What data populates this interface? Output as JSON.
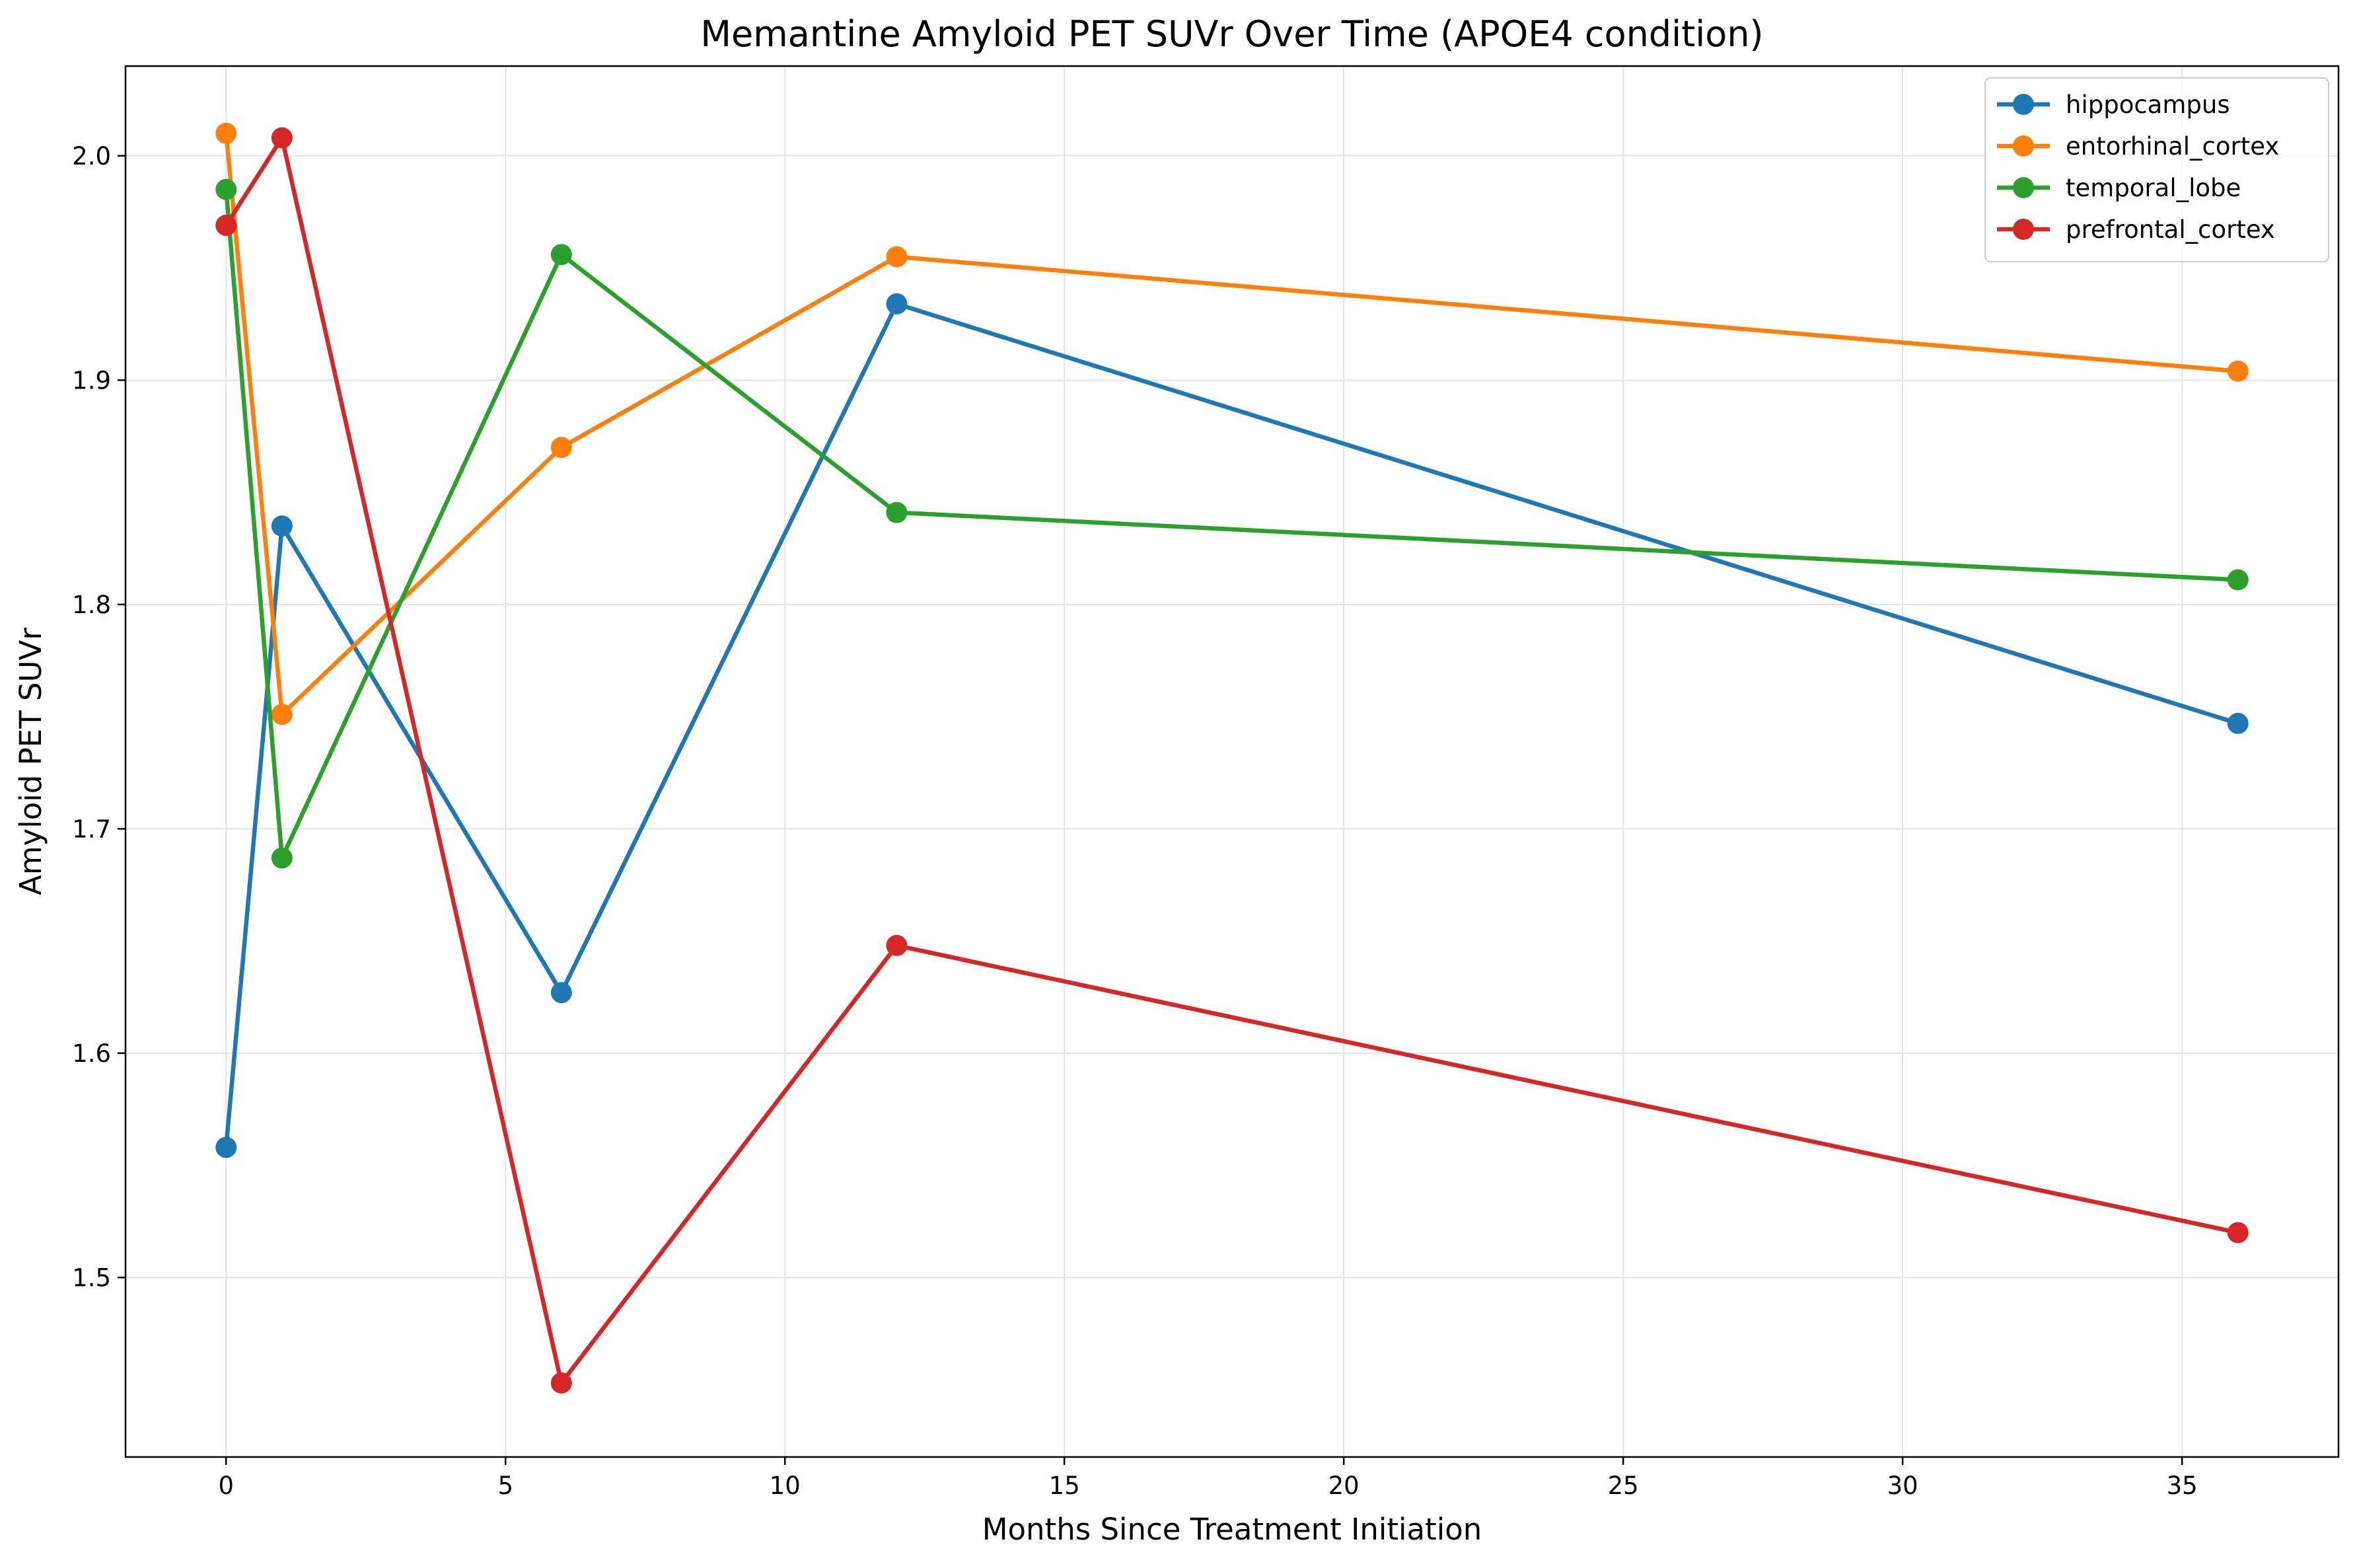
{
  "chart_data": {
    "type": "line",
    "title": "Memantine Amyloid PET SUVr Over Time (APOE4 condition)",
    "xlabel": "Months Since Treatment Initiation",
    "ylabel": "Amyloid PET SUVr",
    "xlim": [
      -1.8,
      37.8
    ],
    "ylim": [
      1.42,
      2.04
    ],
    "xticks": [
      0,
      5,
      10,
      15,
      20,
      25,
      30,
      35
    ],
    "yticks": [
      1.5,
      1.6,
      1.7,
      1.8,
      1.9,
      2.0
    ],
    "xtick_labels": [
      "0",
      "5",
      "10",
      "15",
      "20",
      "25",
      "30",
      "35"
    ],
    "ytick_labels": [
      "1.5",
      "1.6",
      "1.7",
      "1.8",
      "1.9",
      "2.0"
    ],
    "grid": true,
    "legend_position": "top-right",
    "x": [
      0,
      1,
      6,
      12,
      36
    ],
    "series": [
      {
        "name": "hippocampus",
        "color": "#1f77b4",
        "values": [
          1.558,
          1.835,
          1.627,
          1.934,
          1.747
        ]
      },
      {
        "name": "entorhinal_cortex",
        "color": "#ff7f0e",
        "values": [
          2.01,
          1.751,
          1.87,
          1.955,
          1.904
        ]
      },
      {
        "name": "temporal_lobe",
        "color": "#2ca02c",
        "values": [
          1.985,
          1.687,
          1.956,
          1.841,
          1.811
        ]
      },
      {
        "name": "prefrontal_cortex",
        "color": "#d62728",
        "values": [
          1.969,
          2.008,
          1.453,
          1.648,
          1.52
        ]
      }
    ]
  }
}
